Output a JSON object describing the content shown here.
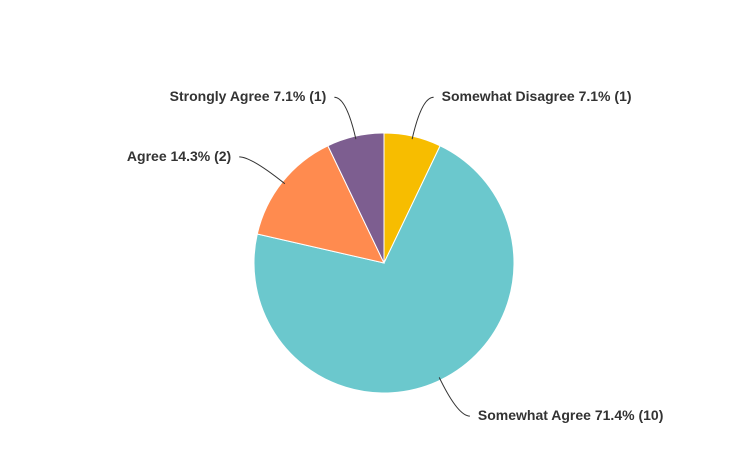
{
  "chart_data": {
    "type": "pie",
    "categories": [
      "Somewhat Disagree",
      "Somewhat Agree",
      "Agree",
      "Strongly Agree"
    ],
    "values": [
      7.1,
      71.4,
      14.3,
      7.1
    ],
    "value_labels": [
      "7.1%",
      "71.4%",
      "14.3%",
      "7.1%"
    ],
    "counts": [
      1,
      10,
      2,
      1
    ],
    "count_labels": [
      "(1)",
      "(10)",
      "(2)",
      "(1)"
    ],
    "colors": [
      "#f7bd00",
      "#6bc8cd",
      "#ff8b4f",
      "#7d5e90"
    ]
  }
}
